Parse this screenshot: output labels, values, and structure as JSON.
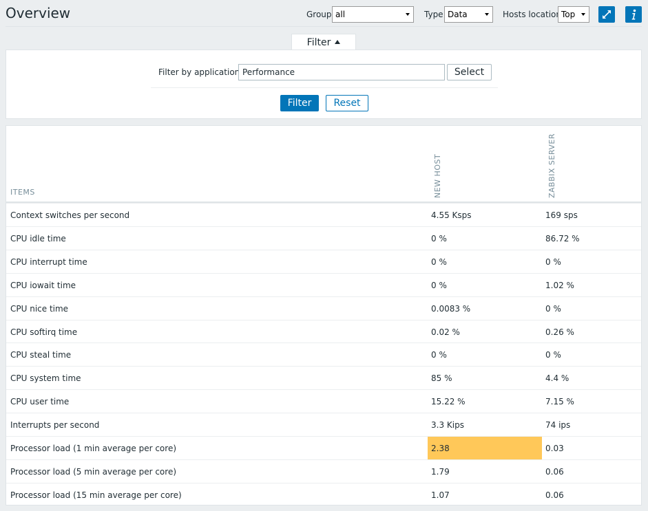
{
  "header": {
    "title": "Overview",
    "group_label": "Group",
    "group_value": "all",
    "type_label": "Type",
    "type_value": "Data",
    "hosts_location_label": "Hosts location",
    "hosts_location_value": "Top"
  },
  "filter": {
    "tab_label": "Filter",
    "app_label": "Filter by application",
    "app_value": "Performance",
    "select_label": "Select",
    "filter_label": "Filter",
    "reset_label": "Reset"
  },
  "table": {
    "items_header": "ITEMS",
    "hosts": [
      "NEW HOST",
      "ZABBIX SERVER"
    ],
    "highlight_color": "#ffc859",
    "rows": [
      {
        "item": "Context switches per second",
        "v1": "4.55 Ksps",
        "v2": "169 sps"
      },
      {
        "item": "CPU idle time",
        "v1": "0 %",
        "v2": "86.72 %"
      },
      {
        "item": "CPU interrupt time",
        "v1": "0 %",
        "v2": "0 %"
      },
      {
        "item": "CPU iowait time",
        "v1": "0 %",
        "v2": "1.02 %"
      },
      {
        "item": "CPU nice time",
        "v1": "0.0083 %",
        "v2": "0 %"
      },
      {
        "item": "CPU softirq time",
        "v1": "0.02 %",
        "v2": "0.26 %"
      },
      {
        "item": "CPU steal time",
        "v1": "0 %",
        "v2": "0 %"
      },
      {
        "item": "CPU system time",
        "v1": "85 %",
        "v2": "4.4 %"
      },
      {
        "item": "CPU user time",
        "v1": "15.22 %",
        "v2": "7.15 %"
      },
      {
        "item": "Interrupts per second",
        "v1": "3.3 Kips",
        "v2": "74 ips"
      },
      {
        "item": "Processor load (1 min average per core)",
        "v1": "2.38",
        "v2": "0.03",
        "v1_highlight": true
      },
      {
        "item": "Processor load (5 min average per core)",
        "v1": "1.79",
        "v2": "0.06"
      },
      {
        "item": "Processor load (15 min average per core)",
        "v1": "1.07",
        "v2": "0.06"
      }
    ]
  },
  "icons": {
    "fullscreen": "fullscreen-icon",
    "info": "info-icon"
  }
}
